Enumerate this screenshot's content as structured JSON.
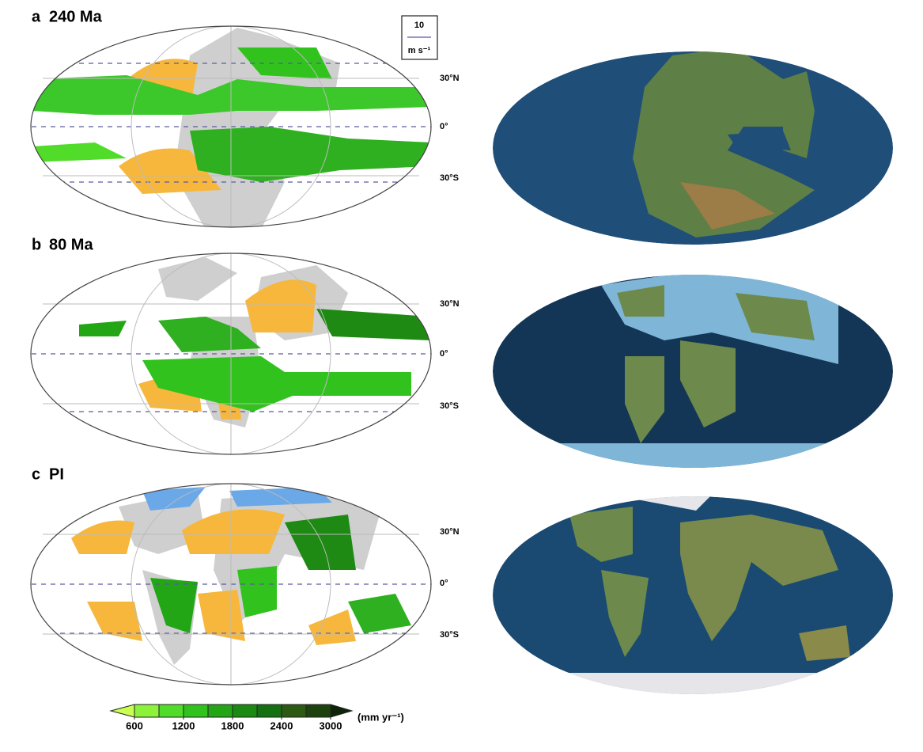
{
  "panels": [
    {
      "label": "a",
      "title": "240 Ma",
      "lat_labels": [
        "30°N",
        "0°",
        "30°S"
      ]
    },
    {
      "label": "b",
      "title": "80 Ma",
      "lat_labels": [
        "30°N",
        "0°",
        "30°S"
      ]
    },
    {
      "label": "c",
      "title": "PI",
      "lat_labels": [
        "30°N",
        "0°",
        "30°S"
      ]
    }
  ],
  "reference_vector": {
    "value": "10",
    "unit": "m s⁻¹"
  },
  "colorbar": {
    "ticks": [
      600,
      1200,
      1800,
      2400,
      3000
    ],
    "unit": "(mm yr⁻¹)",
    "colors": [
      "#c8ff50",
      "#8cf23c",
      "#52dc2a",
      "#32c21e",
      "#22a616",
      "#1a8a12",
      "#147010",
      "#2c5a12",
      "#1e420e",
      "#0e2408"
    ]
  }
}
